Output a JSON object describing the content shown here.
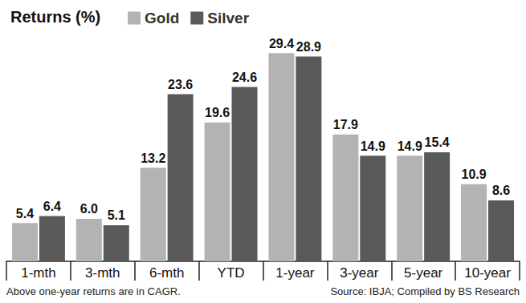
{
  "chart_data": {
    "type": "bar",
    "title": "Returns (%)",
    "categories": [
      "1-mth",
      "3-mth",
      "6-mth",
      "YTD",
      "1-year",
      "3-year",
      "5-year",
      "10-year"
    ],
    "series": [
      {
        "name": "Gold",
        "color": "#b3b3b3",
        "values": [
          5.4,
          6.0,
          13.2,
          19.6,
          29.4,
          17.9,
          14.9,
          10.9
        ],
        "value_labels": [
          "5.4",
          "6.0",
          "13.2",
          "19.6",
          "29.4",
          "17.9",
          "14.9",
          "10.9"
        ]
      },
      {
        "name": "Silver",
        "color": "#595959",
        "values": [
          6.4,
          5.1,
          23.6,
          24.6,
          28.9,
          14.9,
          15.4,
          8.6
        ],
        "value_labels": [
          "6.4",
          "5.1",
          "23.6",
          "24.6",
          "28.9",
          "14.9",
          "15.4",
          "8.6"
        ]
      }
    ],
    "ylim": [
      0,
      31
    ],
    "data_labels": true,
    "tick_labels": "x",
    "legend": "top-left",
    "grid": false,
    "note": "Above one-year returns are in CAGR.",
    "source": "Source: IBJA; Compiled by BS Research"
  }
}
